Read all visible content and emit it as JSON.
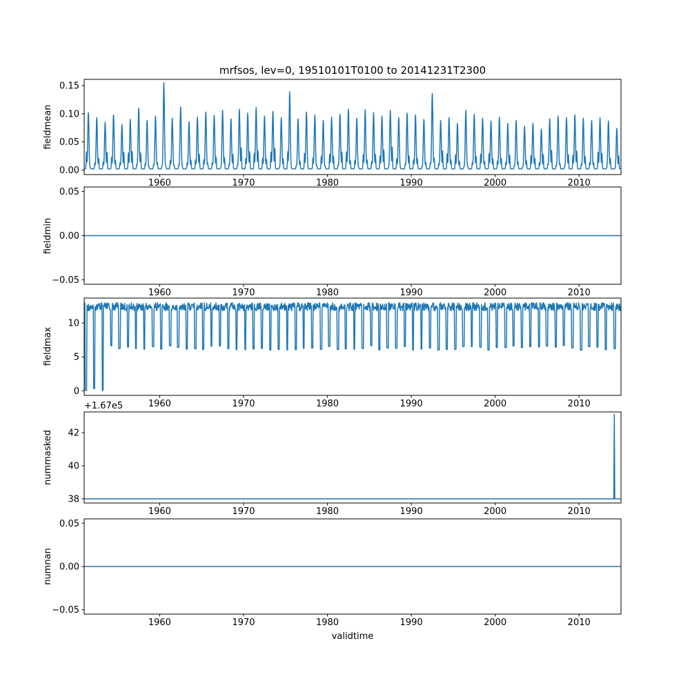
{
  "figure": {
    "title": "mrfsos, lev=0, 19510101T0100 to 20141231T2300",
    "xlabel": "validtime",
    "line_color": "#1f77b4",
    "axis_color": "#000000",
    "background": "#ffffff",
    "x_range": [
      1951,
      2015
    ],
    "x_ticks": [
      1960,
      1970,
      1980,
      1990,
      2000,
      2010
    ],
    "x_tick_labels": [
      "1960",
      "1970",
      "1980",
      "1990",
      "2000",
      "2010"
    ]
  },
  "chart_data": [
    {
      "type": "line",
      "name": "fieldmean",
      "ylabel": "fieldmean",
      "ylim": [
        -0.008,
        0.161
      ],
      "y_ticks": [
        0.0,
        0.05,
        0.1,
        0.15
      ],
      "y_tick_labels": [
        "0.00",
        "0.05",
        "0.10",
        "0.15"
      ],
      "gen": "annual_spikes",
      "x_start": 1951,
      "baseline": 0.002,
      "annual_peaks": [
        0.1,
        0.091,
        0.083,
        0.096,
        0.079,
        0.088,
        0.108,
        0.086,
        0.094,
        0.153,
        0.09,
        0.11,
        0.084,
        0.092,
        0.101,
        0.095,
        0.104,
        0.089,
        0.106,
        0.099,
        0.109,
        0.094,
        0.102,
        0.091,
        0.137,
        0.089,
        0.101,
        0.096,
        0.086,
        0.092,
        0.097,
        0.106,
        0.09,
        0.105,
        0.1,
        0.094,
        0.104,
        0.091,
        0.099,
        0.096,
        0.088,
        0.134,
        0.086,
        0.091,
        0.081,
        0.104,
        0.097,
        0.09,
        0.085,
        0.092,
        0.081,
        0.086,
        0.076,
        0.081,
        0.071,
        0.089,
        0.094,
        0.091,
        0.096,
        0.09,
        0.086,
        0.091,
        0.085,
        0.072
      ]
    },
    {
      "type": "line",
      "name": "fieldmin",
      "ylabel": "fieldmin",
      "ylim": [
        -0.055,
        0.055
      ],
      "y_ticks": [
        -0.05,
        0.0,
        0.05
      ],
      "y_tick_labels": [
        "−0.05",
        "0.00",
        "0.05"
      ],
      "gen": "constant",
      "value": 0.0
    },
    {
      "type": "line",
      "name": "fieldmax",
      "ylabel": "fieldmax",
      "ylim": [
        -0.68,
        13.68
      ],
      "y_ticks": [
        0,
        5,
        10
      ],
      "y_tick_labels": [
        "0",
        "5",
        "10"
      ],
      "gen": "square_osc",
      "x_start": 1951,
      "n_years": 64,
      "high": 13.0,
      "low": 6.0,
      "zero_dip_years": [
        1951,
        1952,
        1953
      ]
    },
    {
      "type": "line",
      "name": "nummasked",
      "ylabel": "nummasked",
      "offset_text": "+1.67e5",
      "display_offset": 167000,
      "ylim": [
        37.75,
        43.25
      ],
      "y_ticks": [
        38,
        40,
        42
      ],
      "y_tick_labels": [
        "38",
        "40",
        "42"
      ],
      "gen": "constant_spike",
      "value": 167038,
      "spike_x": 2014.2,
      "spike_value": 167043.1
    },
    {
      "type": "line",
      "name": "numnan",
      "ylabel": "numnan",
      "ylim": [
        -0.055,
        0.055
      ],
      "y_ticks": [
        -0.05,
        0.0,
        0.05
      ],
      "y_tick_labels": [
        "−0.05",
        "0.00",
        "0.05"
      ],
      "gen": "constant",
      "value": 0.0
    }
  ]
}
